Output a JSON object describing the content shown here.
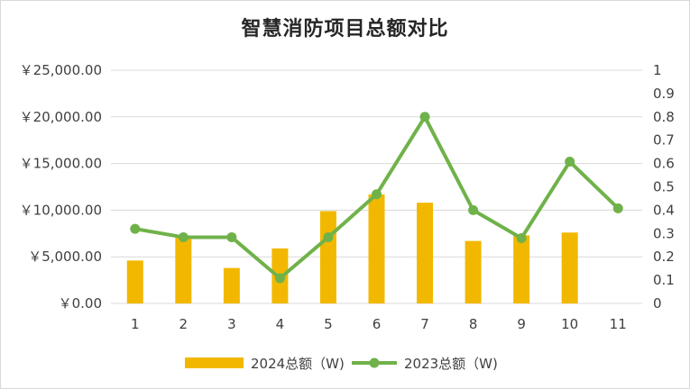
{
  "chart_data": {
    "type": "bar",
    "title": "智慧消防项目总额对比",
    "categories": [
      "1",
      "2",
      "3",
      "4",
      "5",
      "6",
      "7",
      "8",
      "9",
      "10",
      "11"
    ],
    "y_left": {
      "ylim": [
        0,
        25000
      ],
      "ticks": [
        0,
        5000,
        10000,
        15000,
        20000,
        25000
      ],
      "tick_labels": [
        "￥0.00",
        "￥5,000.00",
        "￥10,000.00",
        "￥15,000.00",
        "￥20,000.00",
        "￥25,000.00"
      ]
    },
    "y_right": {
      "ylim": [
        0,
        1
      ],
      "ticks": [
        0,
        0.1,
        0.2,
        0.3,
        0.4,
        0.5,
        0.6,
        0.7,
        0.8,
        0.9,
        1
      ],
      "tick_labels": [
        "0",
        "0.1",
        "0.2",
        "0.3",
        "0.4",
        "0.5",
        "0.6",
        "0.7",
        "0.8",
        "0.9",
        "1"
      ]
    },
    "series": [
      {
        "name": "2024总额（W)",
        "type": "bar",
        "axis": "left",
        "color": "#F2B800",
        "values": [
          4600,
          7200,
          3800,
          5900,
          9900,
          11700,
          10800,
          6700,
          7300,
          7600,
          null
        ]
      },
      {
        "name": "2023总额（W)",
        "type": "line",
        "axis": "left",
        "color": "#70B24A",
        "values": [
          8000,
          7100,
          7100,
          2700,
          7100,
          11700,
          20000,
          10000,
          7000,
          15200,
          10200
        ]
      }
    ],
    "legend_position": "bottom",
    "grid": true
  }
}
